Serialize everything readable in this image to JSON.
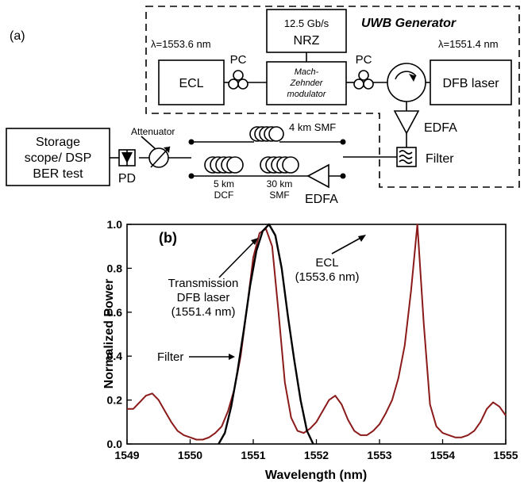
{
  "panel_a": {
    "label": "(a)",
    "generator_title": "UWB Generator",
    "ecl_wavelength": "λ=1553.6 nm",
    "dfb_wavelength": "λ=1551.4 nm",
    "nrz_rate": "12.5 Gb/s",
    "nrz": "NRZ",
    "ecl": "ECL",
    "pc_left": "PC",
    "pc_right": "PC",
    "mzm_line1": "Mach-",
    "mzm_line2": "Zehnder",
    "mzm_line3": "modulator",
    "dfb": "DFB laser",
    "edfa_top": "EDFA",
    "filter": "Filter",
    "smf_4km": "4 km SMF",
    "dcf_line1": "5 km",
    "dcf_line2": "DCF",
    "smf30_line1": "30 km",
    "smf30_line2": "SMF",
    "edfa_bottom": "EDFA",
    "attenuator": "Attenuator",
    "pd": "PD",
    "scope_line1": "Storage",
    "scope_line2": "scope/ DSP",
    "scope_line3": "BER test"
  },
  "panel_b": {
    "label": "(b)",
    "annotations": {
      "ecl_line1": "ECL",
      "ecl_line2": "(1553.6 nm)",
      "dfb_line1": "Transmission",
      "dfb_line2": "DFB laser",
      "dfb_line3": "(1551.4 nm)",
      "filter": "Filter"
    }
  },
  "chart_data": {
    "type": "line",
    "xlabel": "Wavelength (nm)",
    "ylabel": "Normalized Power",
    "xlim": [
      1549,
      1555
    ],
    "ylim": [
      0.0,
      1.0
    ],
    "xticks": [
      "1549",
      "1550",
      "1551",
      "1552",
      "1553",
      "1554",
      "1555"
    ],
    "yticks": [
      "0.0",
      "0.2",
      "0.4",
      "0.6",
      "0.8",
      "1.0"
    ],
    "series": [
      {
        "color": "#8b1a1a",
        "x": [
          1549.0,
          1549.1,
          1549.2,
          1549.3,
          1549.4,
          1549.5,
          1549.6,
          1549.7,
          1549.8,
          1549.9,
          1550.0,
          1550.1,
          1550.2,
          1550.3,
          1550.4,
          1550.5,
          1550.6,
          1550.7,
          1550.8,
          1550.9,
          1551.0,
          1551.1,
          1551.2,
          1551.3,
          1551.4,
          1551.5,
          1551.6,
          1551.7,
          1551.8,
          1551.9,
          1552.0,
          1552.1,
          1552.2,
          1552.3,
          1552.4,
          1552.5,
          1552.6,
          1552.7,
          1552.8,
          1552.9,
          1553.0,
          1553.1,
          1553.2,
          1553.3,
          1553.4,
          1553.5,
          1553.6,
          1553.7,
          1553.8,
          1553.9,
          1554.0,
          1554.1,
          1554.2,
          1554.3,
          1554.4,
          1554.5,
          1554.6,
          1554.7,
          1554.8,
          1554.9,
          1555.0
        ],
        "y": [
          0.16,
          0.16,
          0.19,
          0.22,
          0.23,
          0.2,
          0.15,
          0.1,
          0.06,
          0.04,
          0.03,
          0.02,
          0.02,
          0.03,
          0.05,
          0.08,
          0.15,
          0.25,
          0.4,
          0.62,
          0.85,
          0.96,
          0.98,
          0.9,
          0.6,
          0.28,
          0.12,
          0.06,
          0.05,
          0.07,
          0.1,
          0.15,
          0.2,
          0.22,
          0.18,
          0.11,
          0.06,
          0.04,
          0.04,
          0.06,
          0.09,
          0.14,
          0.2,
          0.3,
          0.45,
          0.7,
          1.0,
          0.55,
          0.18,
          0.08,
          0.05,
          0.04,
          0.03,
          0.03,
          0.04,
          0.06,
          0.1,
          0.16,
          0.19,
          0.17,
          0.13
        ]
      },
      {
        "color": "#000000",
        "x": [
          1550.45,
          1550.55,
          1550.65,
          1550.75,
          1550.85,
          1550.95,
          1551.05,
          1551.15,
          1551.25,
          1551.35,
          1551.45,
          1551.55,
          1551.65,
          1551.75,
          1551.85,
          1551.95
        ],
        "y": [
          0.0,
          0.05,
          0.17,
          0.33,
          0.52,
          0.72,
          0.88,
          0.97,
          1.0,
          0.95,
          0.8,
          0.58,
          0.38,
          0.2,
          0.06,
          0.0
        ]
      }
    ]
  }
}
